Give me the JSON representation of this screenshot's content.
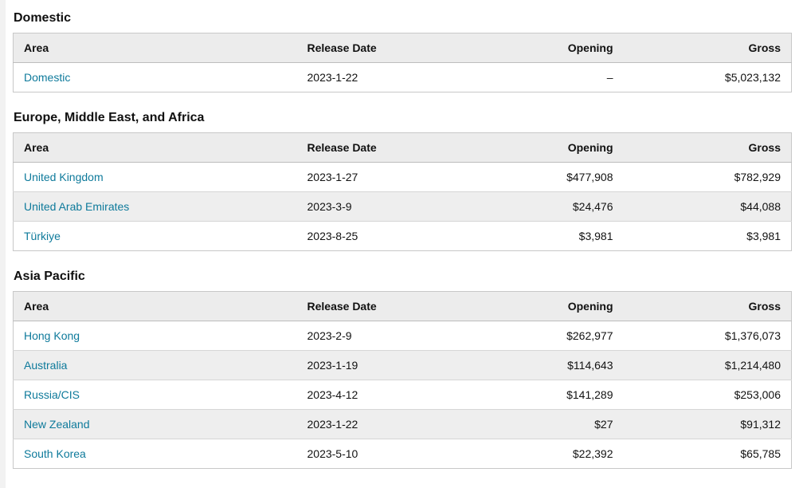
{
  "colors": {
    "link_teal": "#0e7a9b",
    "header_row_bg": "#ececec",
    "zebra_row_bg": "#eeeeee",
    "table_border": "#c8c8c8",
    "text": "#111111"
  },
  "table": {
    "columns": [
      {
        "key": "area",
        "label": "Area",
        "align": "left"
      },
      {
        "key": "release_date",
        "label": "Release Date",
        "align": "left"
      },
      {
        "key": "opening",
        "label": "Opening",
        "align": "right"
      },
      {
        "key": "gross",
        "label": "Gross",
        "align": "right"
      }
    ]
  },
  "sections": [
    {
      "title": "Domestic",
      "rows": [
        {
          "area": "Domestic",
          "release_date": "2023-1-22",
          "opening": "–",
          "gross": "$5,023,132"
        }
      ]
    },
    {
      "title": "Europe, Middle East, and Africa",
      "rows": [
        {
          "area": "United Kingdom",
          "release_date": "2023-1-27",
          "opening": "$477,908",
          "gross": "$782,929"
        },
        {
          "area": "United Arab Emirates",
          "release_date": "2023-3-9",
          "opening": "$24,476",
          "gross": "$44,088"
        },
        {
          "area": "Türkiye",
          "release_date": "2023-8-25",
          "opening": "$3,981",
          "gross": "$3,981"
        }
      ]
    },
    {
      "title": "Asia Pacific",
      "rows": [
        {
          "area": "Hong Kong",
          "release_date": "2023-2-9",
          "opening": "$262,977",
          "gross": "$1,376,073"
        },
        {
          "area": "Australia",
          "release_date": "2023-1-19",
          "opening": "$114,643",
          "gross": "$1,214,480"
        },
        {
          "area": "Russia/CIS",
          "release_date": "2023-4-12",
          "opening": "$141,289",
          "gross": "$253,006"
        },
        {
          "area": "New Zealand",
          "release_date": "2023-1-22",
          "opening": "$27",
          "gross": "$91,312"
        },
        {
          "area": "South Korea",
          "release_date": "2023-5-10",
          "opening": "$22,392",
          "gross": "$65,785"
        }
      ]
    }
  ]
}
